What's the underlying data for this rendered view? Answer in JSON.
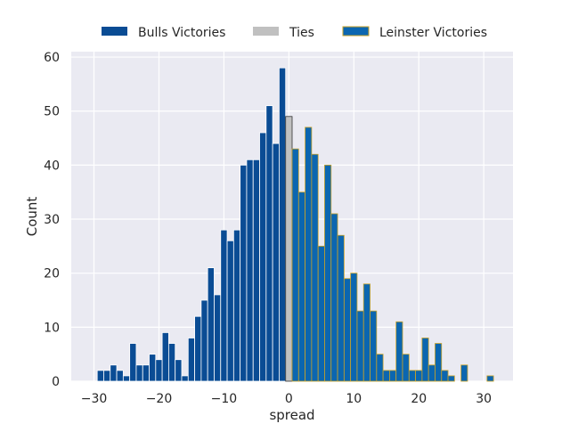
{
  "chart_data": {
    "type": "bar",
    "xlabel": "spread",
    "ylabel": "Count",
    "xlim": [
      -33.5,
      34.5
    ],
    "ylim": [
      0,
      61
    ],
    "xticks": [
      -30,
      -20,
      -10,
      0,
      10,
      20,
      30
    ],
    "yticks": [
      0,
      10,
      20,
      30,
      40,
      50,
      60
    ],
    "xtick_labels": [
      "−30",
      "−20",
      "−10",
      "0",
      "10",
      "20",
      "30"
    ],
    "ytick_labels": [
      "0",
      "10",
      "20",
      "30",
      "40",
      "50",
      "60"
    ],
    "grid": true,
    "legend_position": "top-center",
    "bin_width": 1,
    "colors": {
      "background": "#eaeaf2",
      "grid": "#ffffff",
      "bulls": "#0a4c94",
      "ties": "#c0c0c0",
      "leinster": "#0b66b0",
      "leinster_edge": "#c9a227",
      "ties_edge": "#333333"
    },
    "series": [
      {
        "name": "Bulls Victories",
        "x": [
          -30,
          -29,
          -28,
          -27,
          -26,
          -25,
          -24,
          -23,
          -22,
          -21,
          -20,
          -19,
          -18,
          -17,
          -16,
          -15,
          -14,
          -13,
          -12,
          -11,
          -10,
          -9,
          -8,
          -7,
          -6,
          -5,
          -4,
          -3,
          -2,
          -1
        ],
        "values": [
          0,
          2,
          2,
          3,
          2,
          1,
          7,
          3,
          3,
          5,
          4,
          9,
          7,
          4,
          1,
          8,
          12,
          15,
          21,
          16,
          28,
          26,
          28,
          40,
          41,
          41,
          46,
          51,
          44,
          58
        ]
      },
      {
        "name": "Ties",
        "x": [
          0
        ],
        "values": [
          49
        ]
      },
      {
        "name": "Leinster Victories",
        "x": [
          1,
          2,
          3,
          4,
          5,
          6,
          7,
          8,
          9,
          10,
          11,
          12,
          13,
          14,
          15,
          16,
          17,
          18,
          19,
          20,
          21,
          22,
          23,
          24,
          25,
          26,
          27,
          28,
          29,
          30,
          31
        ],
        "values": [
          43,
          35,
          47,
          42,
          25,
          40,
          31,
          27,
          19,
          20,
          13,
          18,
          13,
          5,
          2,
          2,
          11,
          5,
          2,
          2,
          8,
          3,
          7,
          2,
          1,
          0,
          3,
          0,
          0,
          0,
          1
        ]
      }
    ]
  }
}
